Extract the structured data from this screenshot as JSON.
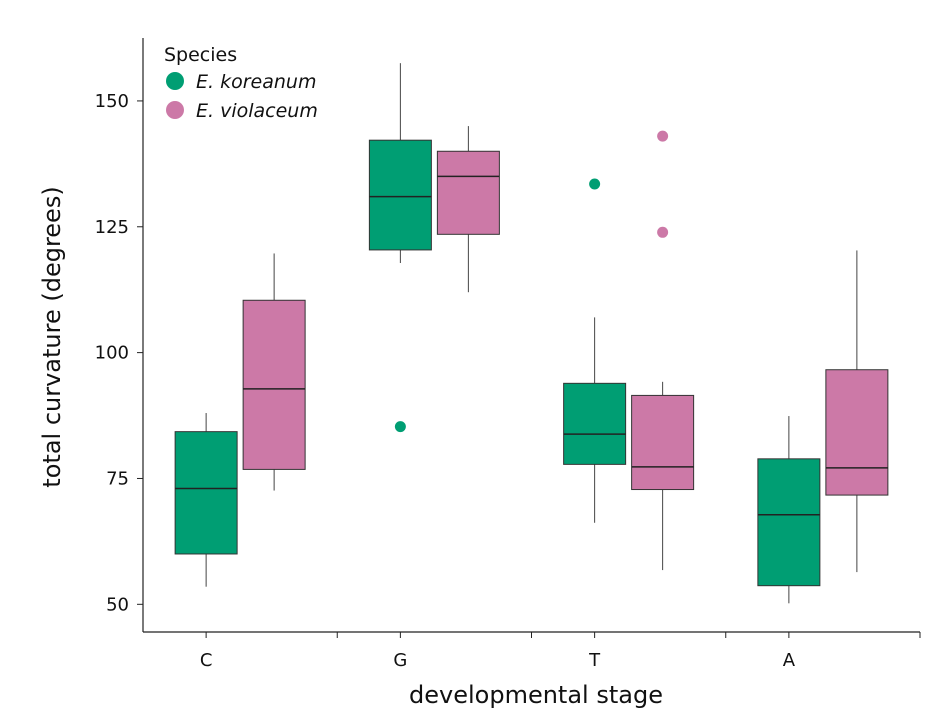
{
  "chart_data": {
    "type": "box",
    "xlabel": "developmental stage",
    "ylabel": "total curvature (degrees)",
    "categories": [
      "C",
      "G",
      "T",
      "A"
    ],
    "ylim": [
      44.5,
      162.5
    ],
    "yticks": [
      50,
      75,
      100,
      125,
      150
    ],
    "grid": false,
    "legend": {
      "title": "Species",
      "placement": "top-left"
    },
    "series": [
      {
        "name": "E. koreanum",
        "color": "#009E73",
        "boxes": [
          {
            "category": "C",
            "whisker_low": 53.5,
            "q1": 60.0,
            "median": 73.0,
            "q3": 84.3,
            "whisker_high": 88.0,
            "outliers": []
          },
          {
            "category": "G",
            "whisker_low": 117.8,
            "q1": 120.4,
            "median": 131.0,
            "q3": 142.2,
            "whisker_high": 157.5,
            "outliers": [
              85.3
            ]
          },
          {
            "category": "T",
            "whisker_low": 66.2,
            "q1": 77.8,
            "median": 83.8,
            "q3": 93.9,
            "whisker_high": 107.0,
            "outliers": [
              133.5
            ]
          },
          {
            "category": "A",
            "whisker_low": 50.2,
            "q1": 53.7,
            "median": 67.8,
            "q3": 78.9,
            "whisker_high": 87.4,
            "outliers": []
          }
        ]
      },
      {
        "name": "E. violaceum",
        "color": "#CC79A7",
        "boxes": [
          {
            "category": "C",
            "whisker_low": 72.6,
            "q1": 76.8,
            "median": 92.8,
            "q3": 110.4,
            "whisker_high": 119.7,
            "outliers": []
          },
          {
            "category": "G",
            "whisker_low": 112.0,
            "q1": 123.5,
            "median": 135.0,
            "q3": 140.0,
            "whisker_high": 145.0,
            "outliers": []
          },
          {
            "category": "T",
            "whisker_low": 56.8,
            "q1": 72.8,
            "median": 77.3,
            "q3": 91.5,
            "whisker_high": 94.2,
            "outliers": [
              143.0,
              123.9
            ]
          },
          {
            "category": "A",
            "whisker_low": 56.4,
            "q1": 71.7,
            "median": 77.1,
            "q3": 96.6,
            "whisker_high": 120.3,
            "outliers": []
          }
        ]
      }
    ]
  }
}
